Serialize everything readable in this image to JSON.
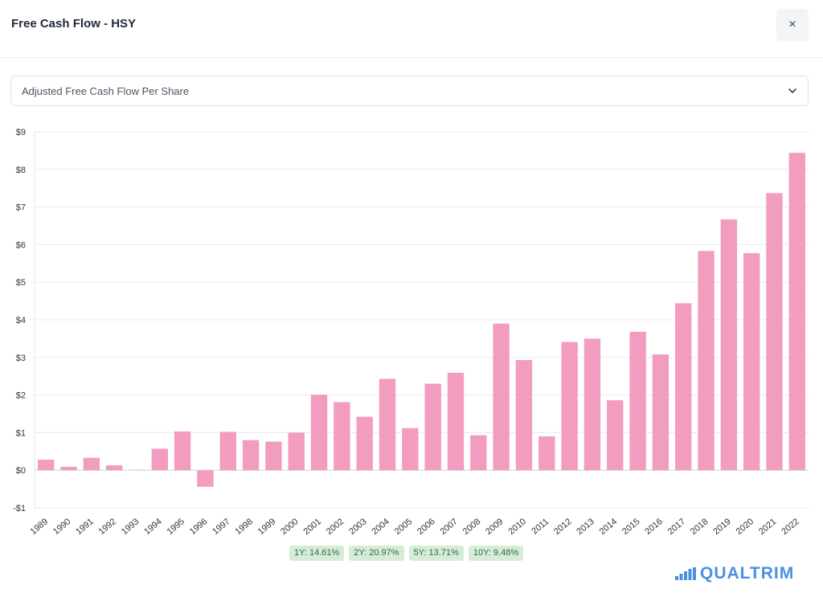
{
  "header": {
    "title": "Free Cash Flow - HSY",
    "close_label": "×"
  },
  "metric_select": {
    "selected": "Adjusted Free Cash Flow Per Share"
  },
  "chart_data": {
    "type": "bar",
    "title": "",
    "xlabel": "",
    "ylabel": "",
    "ylim": [
      -1,
      9
    ],
    "yticks": [
      -1,
      0,
      1,
      2,
      3,
      4,
      5,
      6,
      7,
      8,
      9
    ],
    "ytick_labels": [
      "-$1",
      "$0",
      "$1",
      "$2",
      "$3",
      "$4",
      "$5",
      "$6",
      "$7",
      "$8",
      "$9"
    ],
    "grid": true,
    "bar_color": "#f29cbf",
    "categories": [
      "1989",
      "1990",
      "1991",
      "1992",
      "1993",
      "1994",
      "1995",
      "1996",
      "1997",
      "1998",
      "1999",
      "2000",
      "2001",
      "2002",
      "2003",
      "2004",
      "2005",
      "2006",
      "2007",
      "2008",
      "2009",
      "2010",
      "2011",
      "2012",
      "2013",
      "2014",
      "2015",
      "2016",
      "2017",
      "2018",
      "2019",
      "2020",
      "2021",
      "2022"
    ],
    "values": [
      0.28,
      0.09,
      0.33,
      0.13,
      0.01,
      0.57,
      1.03,
      -0.44,
      1.02,
      0.8,
      0.76,
      1.0,
      2.01,
      1.81,
      1.42,
      2.43,
      1.12,
      2.3,
      2.59,
      0.93,
      3.9,
      2.93,
      0.9,
      3.41,
      3.5,
      1.86,
      3.68,
      3.08,
      4.44,
      5.83,
      6.67,
      5.77,
      7.37,
      8.44
    ]
  },
  "growth": [
    {
      "label": "1Y: 14.61%"
    },
    {
      "label": "2Y: 20.97%"
    },
    {
      "label": "5Y: 13.71%"
    },
    {
      "label": "10Y: 9.48%"
    }
  ],
  "brand": {
    "name": "QUALTRIM",
    "color": "#4a90e2"
  }
}
